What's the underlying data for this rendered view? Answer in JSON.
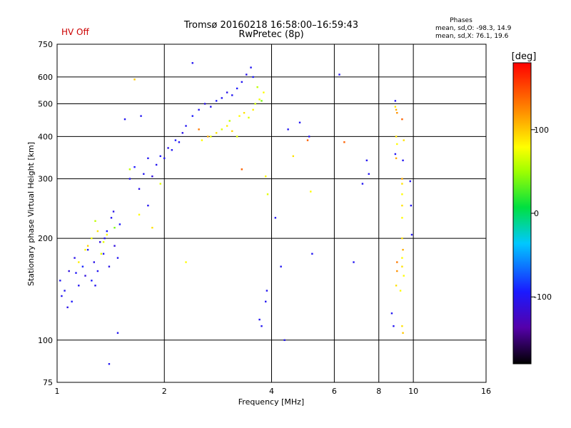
{
  "header": {
    "title": "Tromsø 20160218 16:58:00–16:59:43",
    "subtitle": "RwPretec (8p)",
    "status": "HV Off",
    "status_color": "#cc0000"
  },
  "phases": {
    "heading": "Phases",
    "line1": "mean, sd,O: -98.3, 14.9",
    "line2": "mean, sd,X:  76.1, 19.6"
  },
  "colorbar": {
    "label": "[deg]",
    "ticks": [
      "100",
      "0",
      "-100"
    ],
    "tick_values": [
      100,
      0,
      -100
    ],
    "range": [
      -180,
      180
    ]
  },
  "chart_data": {
    "type": "scatter",
    "title": "Tromsø 20160218 16:58:00–16:59:43",
    "subtitle": "RwPretec (8p)",
    "xlabel": "Frequency [MHz]",
    "ylabel": "Stationary phase Virtual Height [km]",
    "xscale": "log",
    "yscale": "log",
    "xlim": [
      1,
      16
    ],
    "ylim": [
      75,
      750
    ],
    "xticks": [
      1,
      2,
      4,
      6,
      8,
      10,
      16
    ],
    "xtick_labels": [
      "1",
      "2",
      "4",
      "6",
      "8",
      "10",
      "16"
    ],
    "yticks": [
      75,
      100,
      200,
      300,
      400,
      500,
      600,
      750
    ],
    "ytick_labels": [
      "75",
      "100",
      "200",
      "300",
      "400",
      "500",
      "600",
      "750"
    ],
    "grid": true,
    "colormap": "rainbow",
    "color_value": "phase [deg]",
    "series": [
      {
        "points": [
          [
            1.02,
            150,
            -100
          ],
          [
            1.05,
            140,
            -100
          ],
          [
            1.08,
            160,
            -110
          ],
          [
            1.1,
            130,
            -95
          ],
          [
            1.12,
            175,
            -105
          ],
          [
            1.15,
            145,
            -100
          ],
          [
            1.18,
            165,
            -90
          ],
          [
            1.2,
            155,
            -110
          ],
          [
            1.22,
            185,
            -100
          ],
          [
            1.25,
            150,
            -95
          ],
          [
            1.27,
            170,
            -105
          ],
          [
            1.3,
            160,
            -100
          ],
          [
            1.32,
            195,
            -110
          ],
          [
            1.35,
            180,
            -100
          ],
          [
            1.38,
            210,
            -95
          ],
          [
            1.4,
            165,
            -105
          ],
          [
            1.42,
            230,
            -100
          ],
          [
            1.45,
            190,
            -110
          ],
          [
            1.48,
            175,
            -100
          ],
          [
            1.5,
            220,
            -95
          ],
          [
            1.03,
            135,
            -100
          ],
          [
            1.07,
            125,
            -105
          ],
          [
            1.13,
            158,
            -98
          ],
          [
            1.28,
            145,
            -102
          ],
          [
            1.36,
            200,
            -100
          ],
          [
            1.44,
            240,
            -105
          ],
          [
            1.6,
            300,
            -100
          ],
          [
            1.65,
            325,
            -95
          ],
          [
            1.7,
            280,
            -105
          ],
          [
            1.75,
            310,
            -100
          ],
          [
            1.8,
            345,
            -100
          ],
          [
            1.85,
            305,
            -110
          ],
          [
            1.9,
            330,
            -100
          ],
          [
            1.95,
            350,
            -95
          ],
          [
            2.0,
            345,
            -100
          ],
          [
            2.05,
            370,
            -105
          ],
          [
            2.1,
            365,
            -100
          ],
          [
            2.15,
            390,
            -95
          ],
          [
            2.2,
            385,
            -100
          ],
          [
            2.25,
            410,
            -105
          ],
          [
            2.3,
            430,
            -100
          ],
          [
            2.4,
            460,
            -95
          ],
          [
            2.5,
            480,
            -100
          ],
          [
            2.6,
            500,
            -105
          ],
          [
            2.7,
            490,
            -100
          ],
          [
            2.8,
            510,
            -95
          ],
          [
            2.9,
            520,
            -100
          ],
          [
            3.0,
            540,
            -105
          ],
          [
            3.1,
            530,
            -100
          ],
          [
            3.2,
            555,
            -95
          ],
          [
            3.3,
            580,
            -100
          ],
          [
            3.4,
            610,
            -105
          ],
          [
            3.5,
            640,
            -100
          ],
          [
            3.55,
            600,
            -95
          ],
          [
            1.55,
            450,
            -100
          ],
          [
            1.72,
            460,
            -100
          ],
          [
            1.8,
            250,
            -100
          ],
          [
            2.4,
            660,
            -100
          ],
          [
            1.48,
            105,
            -100
          ],
          [
            1.4,
            85,
            -100
          ],
          [
            1.2,
            185,
            80
          ],
          [
            1.25,
            200,
            75
          ],
          [
            1.3,
            210,
            90
          ],
          [
            1.35,
            195,
            70
          ],
          [
            1.15,
            170,
            85
          ],
          [
            1.28,
            225,
            60
          ],
          [
            1.22,
            190,
            95
          ],
          [
            1.33,
            180,
            70
          ],
          [
            1.38,
            205,
            80
          ],
          [
            1.45,
            215,
            40
          ],
          [
            1.7,
            235,
            80
          ],
          [
            1.85,
            215,
            90
          ],
          [
            1.95,
            290,
            70
          ],
          [
            1.6,
            320,
            60
          ],
          [
            1.65,
            590,
            100
          ],
          [
            2.55,
            390,
            80
          ],
          [
            2.7,
            400,
            75
          ],
          [
            2.8,
            410,
            90
          ],
          [
            2.9,
            420,
            70
          ],
          [
            3.0,
            430,
            85
          ],
          [
            3.05,
            445,
            60
          ],
          [
            3.1,
            415,
            95
          ],
          [
            3.2,
            400,
            70
          ],
          [
            3.25,
            460,
            80
          ],
          [
            3.35,
            470,
            90
          ],
          [
            3.45,
            455,
            70
          ],
          [
            3.55,
            480,
            85
          ],
          [
            3.6,
            500,
            65
          ],
          [
            3.7,
            515,
            75
          ],
          [
            3.8,
            540,
            80
          ],
          [
            3.65,
            560,
            60
          ],
          [
            3.75,
            510,
            40
          ],
          [
            2.5,
            420,
            130
          ],
          [
            2.65,
            400,
            110
          ],
          [
            3.3,
            320,
            140
          ],
          [
            3.85,
            305,
            80
          ],
          [
            3.9,
            270,
            70
          ],
          [
            2.3,
            170,
            80
          ],
          [
            3.85,
            130,
            -100
          ],
          [
            3.88,
            140,
            -100
          ],
          [
            3.7,
            115,
            -100
          ],
          [
            3.75,
            110,
            -100
          ],
          [
            4.1,
            230,
            -100
          ],
          [
            4.25,
            165,
            -100
          ],
          [
            4.35,
            100,
            -100
          ],
          [
            4.45,
            420,
            -100
          ],
          [
            4.6,
            350,
            90
          ],
          [
            4.8,
            440,
            -100
          ],
          [
            5.05,
            390,
            140
          ],
          [
            5.1,
            400,
            -100
          ],
          [
            5.15,
            275,
            80
          ],
          [
            5.2,
            180,
            -100
          ],
          [
            6.2,
            610,
            -100
          ],
          [
            6.4,
            385,
            140
          ],
          [
            6.8,
            170,
            -100
          ],
          [
            7.2,
            290,
            -100
          ],
          [
            7.4,
            340,
            -100
          ],
          [
            7.5,
            310,
            -100
          ],
          [
            8.9,
            510,
            -100
          ],
          [
            8.9,
            490,
            90
          ],
          [
            8.95,
            480,
            110
          ],
          [
            9.0,
            470,
            120
          ],
          [
            8.95,
            400,
            90
          ],
          [
            9.0,
            380,
            80
          ],
          [
            8.9,
            355,
            -100
          ],
          [
            8.95,
            345,
            110
          ],
          [
            9.3,
            450,
            140
          ],
          [
            9.4,
            390,
            90
          ],
          [
            9.35,
            340,
            -100
          ],
          [
            9.3,
            300,
            110
          ],
          [
            9.3,
            290,
            90
          ],
          [
            9.3,
            270,
            80
          ],
          [
            9.3,
            250,
            90
          ],
          [
            9.3,
            230,
            80
          ],
          [
            9.3,
            200,
            90
          ],
          [
            9.35,
            185,
            110
          ],
          [
            9.3,
            175,
            80
          ],
          [
            9.3,
            165,
            90
          ],
          [
            9.0,
            170,
            130
          ],
          [
            9.0,
            160,
            120
          ],
          [
            9.4,
            155,
            80
          ],
          [
            8.95,
            145,
            90
          ],
          [
            9.2,
            140,
            80
          ],
          [
            8.7,
            120,
            -100
          ],
          [
            8.8,
            110,
            -100
          ],
          [
            9.3,
            110,
            90
          ],
          [
            9.35,
            105,
            100
          ],
          [
            9.8,
            295,
            -100
          ],
          [
            9.85,
            250,
            -100
          ],
          [
            9.9,
            205,
            -100
          ]
        ]
      }
    ]
  }
}
